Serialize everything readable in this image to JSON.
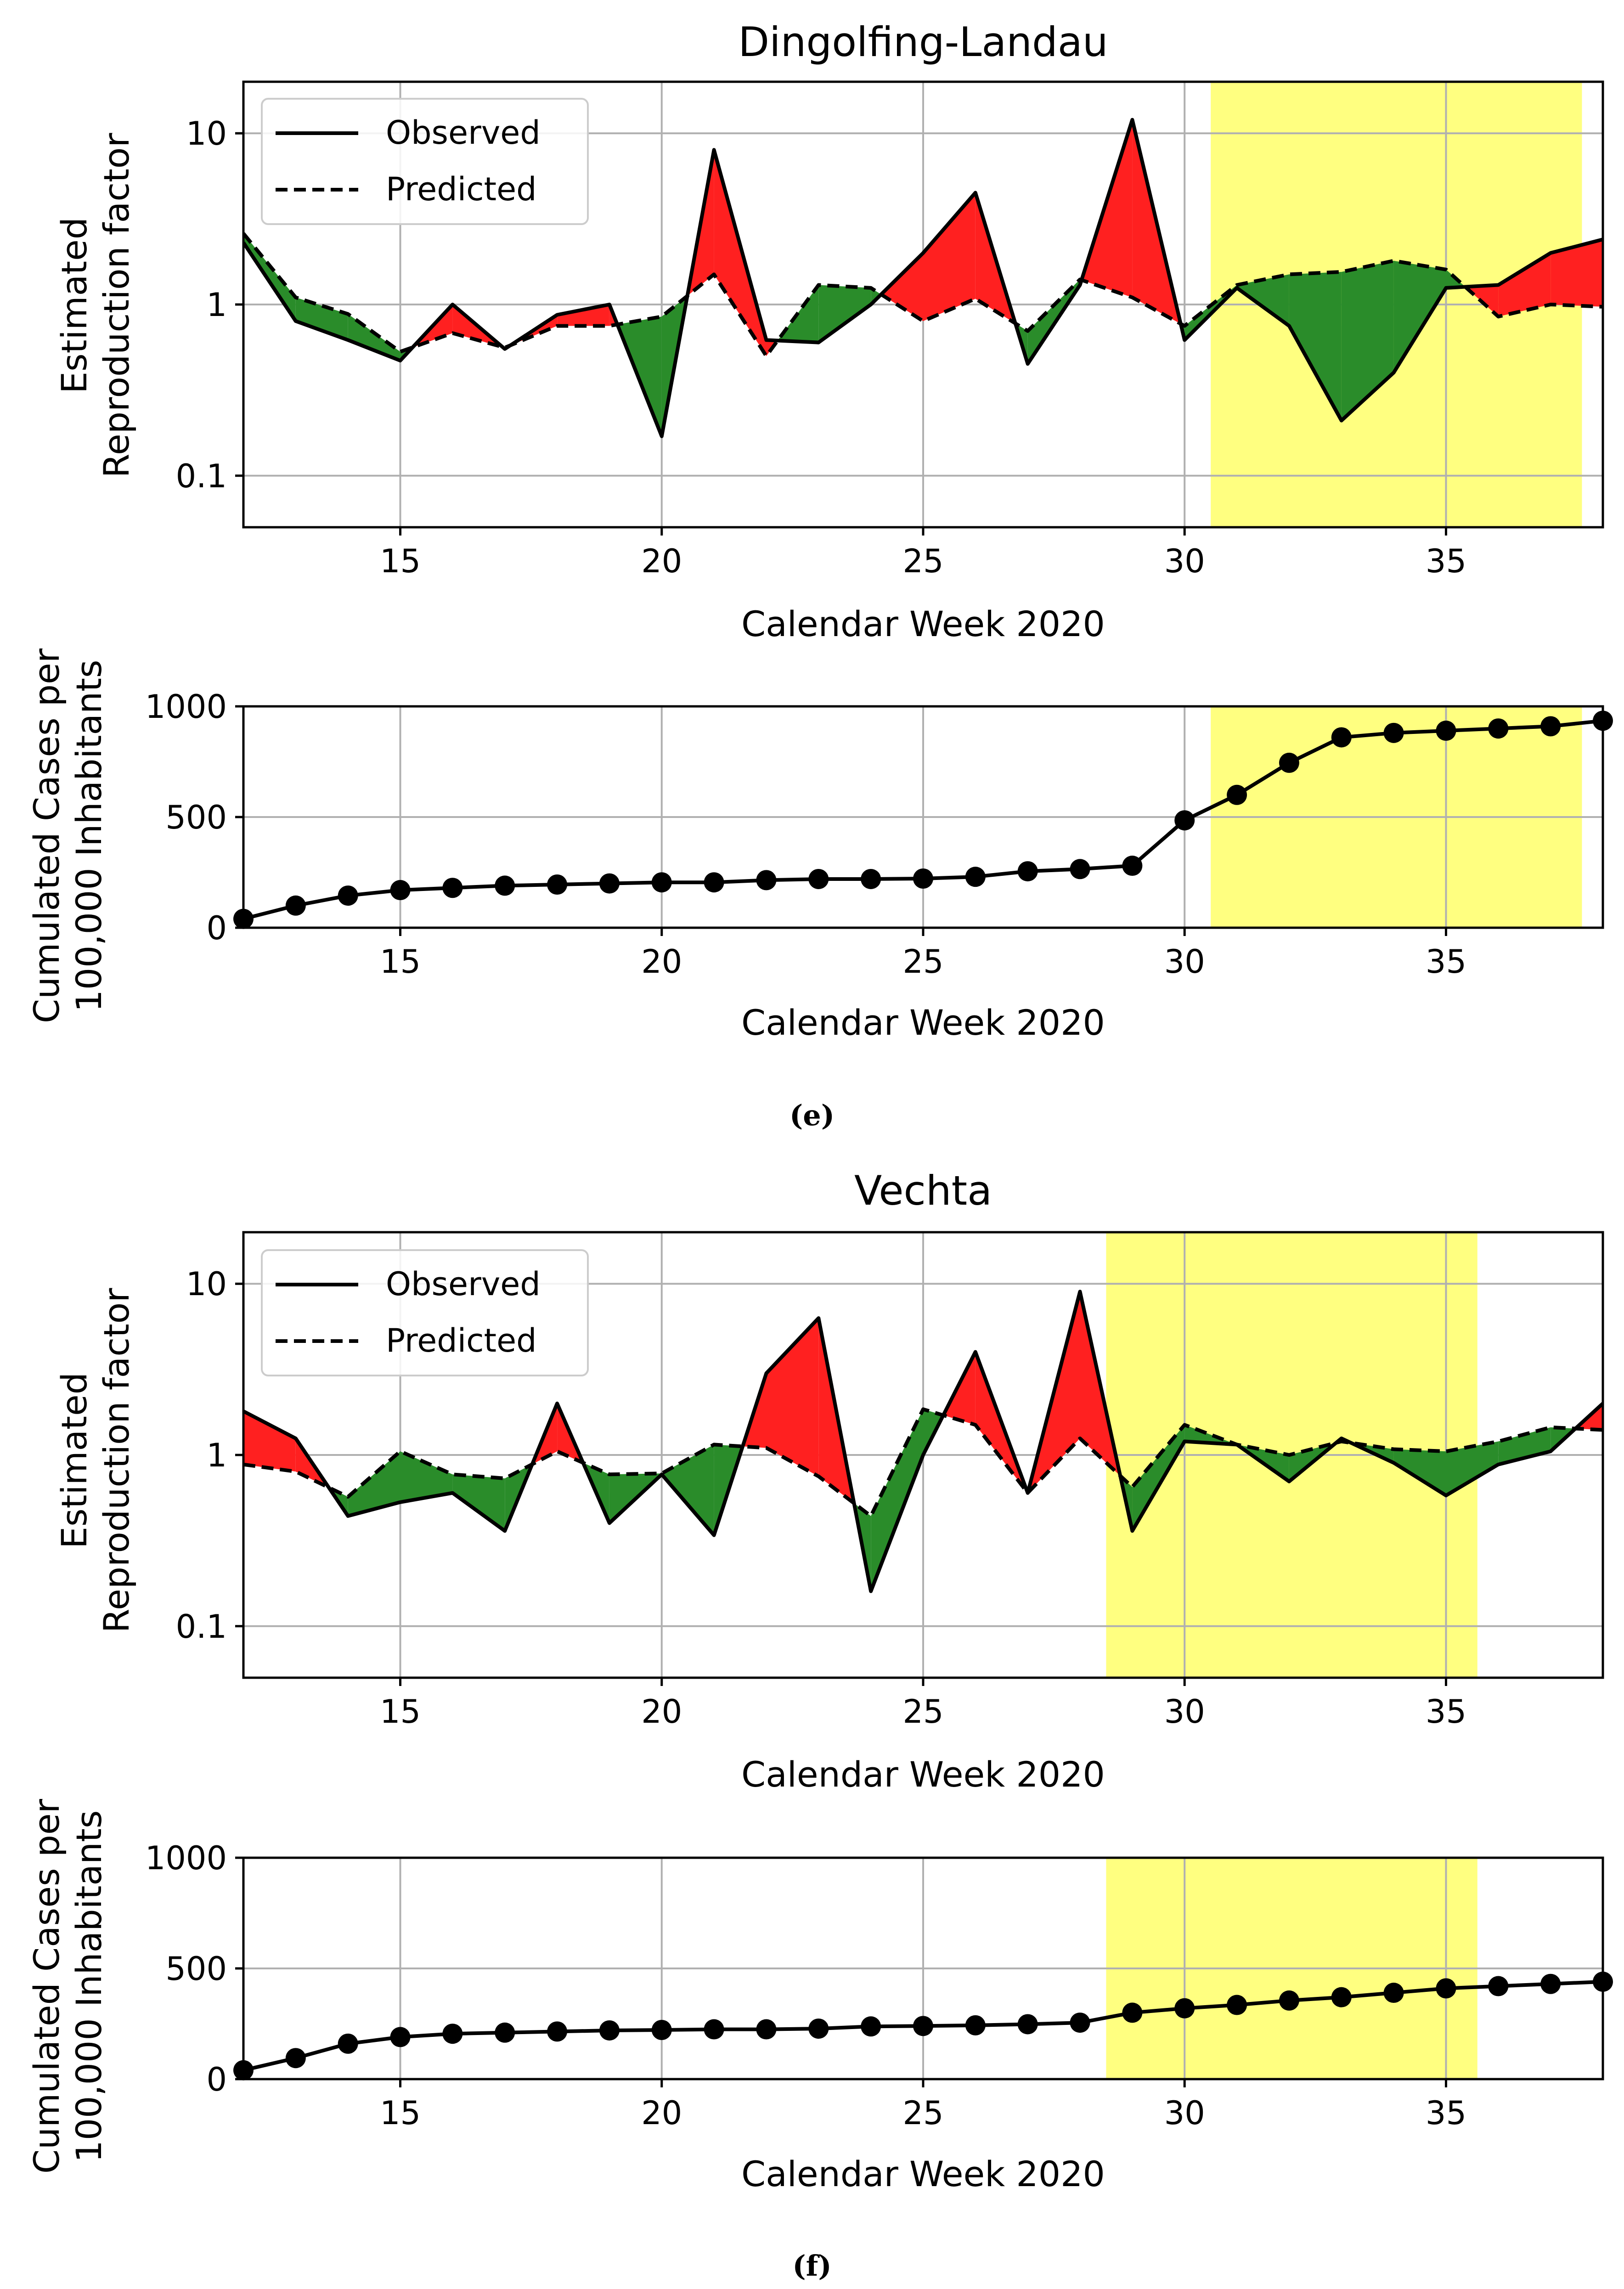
{
  "colors": {
    "highlight": "#ffff80",
    "above_predicted": "#ff2020",
    "below_predicted": "#2a8c2a",
    "line": "#000000",
    "grid": "#b0b0b0"
  },
  "panels": [
    {
      "caption": "(e)",
      "title": "Dingolfing-Landau",
      "repro_ylabel_1": "Estimated",
      "repro_ylabel_2": "Reproduction factor",
      "cases_ylabel_1": "Cumulated Cases per",
      "cases_ylabel_2": "100,000 Inhabitants",
      "xlabel": "Calendar Week 2020",
      "legend": {
        "observed": "Observed",
        "predicted": "Predicted"
      }
    },
    {
      "caption": "(f)",
      "title": "Vechta",
      "repro_ylabel_1": "Estimated",
      "repro_ylabel_2": "Reproduction factor",
      "cases_ylabel_1": "Cumulated Cases per",
      "cases_ylabel_2": "100,000 Inhabitants",
      "xlabel": "Calendar Week 2020",
      "legend": {
        "observed": "Observed",
        "predicted": "Predicted"
      }
    }
  ],
  "chart_data": [
    {
      "type": "line",
      "title": "Dingolfing-Landau",
      "xlabel": "Calendar Week 2020",
      "ylabel": "Estimated Reproduction factor",
      "yscale": "log",
      "xlim": [
        12,
        38
      ],
      "ylim": [
        0.05,
        20
      ],
      "xticks": [
        15,
        20,
        25,
        30,
        35
      ],
      "yticks": [
        0.1,
        1,
        10
      ],
      "ytick_labels": [
        "0.1",
        "1",
        "10"
      ],
      "grid": true,
      "legend_position": "top-left",
      "highlight_span": [
        30.5,
        37.6
      ],
      "fill_between": {
        "observed_above": "red",
        "observed_below": "green"
      },
      "x": [
        12,
        13,
        14,
        15,
        16,
        17,
        18,
        19,
        20,
        21,
        22,
        23,
        24,
        25,
        26,
        27,
        28,
        29,
        30,
        31,
        32,
        33,
        34,
        35,
        36,
        37,
        38
      ],
      "series": [
        {
          "name": "Observed",
          "style": "solid",
          "values": [
            2.3,
            0.8,
            0.62,
            0.47,
            1.0,
            0.55,
            0.87,
            1.0,
            0.17,
            8.0,
            0.62,
            0.6,
            1.0,
            2.0,
            4.5,
            0.45,
            1.3,
            12.0,
            0.62,
            1.25,
            0.75,
            0.21,
            0.4,
            1.25,
            1.3,
            2.0,
            2.4
          ]
        },
        {
          "name": "Predicted",
          "style": "dashed",
          "values": [
            2.6,
            1.1,
            0.88,
            0.53,
            0.68,
            0.56,
            0.75,
            0.75,
            0.85,
            1.5,
            0.5,
            1.3,
            1.25,
            0.8,
            1.08,
            0.7,
            1.4,
            1.1,
            0.75,
            1.3,
            1.5,
            1.55,
            1.8,
            1.6,
            0.85,
            1.0,
            0.97
          ]
        }
      ]
    },
    {
      "type": "line",
      "title": "",
      "xlabel": "Calendar Week 2020",
      "ylabel": "Cumulated Cases per 100,000 Inhabitants",
      "xlim": [
        12,
        38
      ],
      "ylim": [
        0,
        1000
      ],
      "xticks": [
        15,
        20,
        25,
        30,
        35
      ],
      "yticks": [
        0,
        500,
        1000
      ],
      "grid": true,
      "markers": "circle",
      "highlight_span": [
        30.5,
        37.6
      ],
      "x": [
        12,
        13,
        14,
        15,
        16,
        17,
        18,
        19,
        20,
        21,
        22,
        23,
        24,
        25,
        26,
        27,
        28,
        29,
        30,
        31,
        32,
        33,
        34,
        35,
        36,
        37,
        38
      ],
      "values": [
        40,
        100,
        145,
        170,
        180,
        190,
        195,
        200,
        205,
        205,
        215,
        220,
        220,
        222,
        230,
        255,
        265,
        280,
        485,
        600,
        745,
        860,
        880,
        890,
        900,
        910,
        935
      ]
    },
    {
      "type": "line",
      "title": "Vechta",
      "xlabel": "Calendar Week 2020",
      "ylabel": "Estimated Reproduction factor",
      "yscale": "log",
      "xlim": [
        12,
        38
      ],
      "ylim": [
        0.05,
        20
      ],
      "xticks": [
        15,
        20,
        25,
        30,
        35
      ],
      "yticks": [
        0.1,
        1,
        10
      ],
      "ytick_labels": [
        "0.1",
        "1",
        "10"
      ],
      "grid": true,
      "legend_position": "top-left",
      "highlight_span": [
        28.5,
        35.6
      ],
      "fill_between": {
        "observed_above": "red",
        "observed_below": "green"
      },
      "x": [
        12,
        13,
        14,
        15,
        16,
        17,
        18,
        19,
        20,
        21,
        22,
        23,
        24,
        25,
        26,
        27,
        28,
        29,
        30,
        31,
        32,
        33,
        34,
        35,
        36,
        37,
        38
      ],
      "series": [
        {
          "name": "Observed",
          "style": "solid",
          "values": [
            1.8,
            1.25,
            0.44,
            0.53,
            0.6,
            0.36,
            2.0,
            0.4,
            0.77,
            0.34,
            3.0,
            6.3,
            0.16,
            1.0,
            4.0,
            0.6,
            9.0,
            0.36,
            1.2,
            1.15,
            0.7,
            1.25,
            0.9,
            0.58,
            0.88,
            1.05,
            2.0
          ]
        },
        {
          "name": "Predicted",
          "style": "dashed",
          "values": [
            0.88,
            0.8,
            0.57,
            1.05,
            0.77,
            0.73,
            1.05,
            0.77,
            0.78,
            1.15,
            1.1,
            0.75,
            0.44,
            1.85,
            1.5,
            0.6,
            1.25,
            0.65,
            1.5,
            1.15,
            1.0,
            1.2,
            1.08,
            1.05,
            1.2,
            1.45,
            1.4
          ]
        }
      ]
    },
    {
      "type": "line",
      "title": "",
      "xlabel": "Calendar Week 2020",
      "ylabel": "Cumulated Cases per 100,000 Inhabitants",
      "xlim": [
        12,
        38
      ],
      "ylim": [
        0,
        1000
      ],
      "xticks": [
        15,
        20,
        25,
        30,
        35
      ],
      "yticks": [
        0,
        500,
        1000
      ],
      "grid": true,
      "markers": "circle",
      "highlight_span": [
        28.5,
        35.6
      ],
      "x": [
        12,
        13,
        14,
        15,
        16,
        17,
        18,
        19,
        20,
        21,
        22,
        23,
        24,
        25,
        26,
        27,
        28,
        29,
        30,
        31,
        32,
        33,
        34,
        35,
        36,
        37,
        38
      ],
      "values": [
        40,
        95,
        160,
        190,
        205,
        210,
        215,
        220,
        222,
        225,
        225,
        228,
        238,
        240,
        243,
        248,
        255,
        300,
        320,
        335,
        355,
        370,
        390,
        410,
        420,
        430,
        440
      ]
    }
  ]
}
